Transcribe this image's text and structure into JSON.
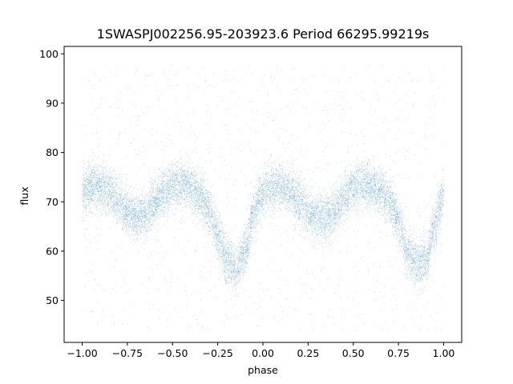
{
  "chart_data": {
    "type": "scatter",
    "title": "1SWASPJ002256.95-203923.6 Period 66295.99219s",
    "xlabel": "phase",
    "ylabel": "flux",
    "xlim": [
      -1.1,
      1.1
    ],
    "ylim": [
      41.5,
      101.5
    ],
    "x_ticks": [
      -1.0,
      -0.75,
      -0.5,
      -0.25,
      0.0,
      0.25,
      0.5,
      0.75,
      1.0
    ],
    "x_tick_labels": [
      "−1.00",
      "−0.75",
      "−0.50",
      "−0.25",
      "0.00",
      "0.25",
      "0.50",
      "0.75",
      "1.00"
    ],
    "y_ticks": [
      50,
      60,
      70,
      80,
      90,
      100
    ],
    "y_tick_labels": [
      "50",
      "60",
      "70",
      "80",
      "90",
      "100"
    ],
    "grid": false,
    "point_color": "#1f77b4",
    "description_note": "",
    "light_curve": {
      "phase": [
        -1.0,
        -0.95,
        -0.9,
        -0.85,
        -0.8,
        -0.75,
        -0.7,
        -0.65,
        -0.6,
        -0.55,
        -0.5,
        -0.45,
        -0.4,
        -0.35,
        -0.3,
        -0.25,
        -0.2,
        -0.15,
        -0.1,
        -0.05,
        0.0,
        0.05,
        0.1,
        0.15,
        0.2,
        0.25,
        0.3,
        0.35,
        0.4,
        0.45,
        0.5,
        0.55,
        0.6,
        0.65,
        0.7,
        0.75,
        0.8,
        0.85,
        0.9,
        0.95,
        1.0
      ],
      "flux": [
        72,
        73,
        73,
        72,
        70,
        68,
        67,
        67.5,
        70,
        72,
        73,
        73.5,
        73,
        71,
        68,
        63,
        58,
        56,
        60,
        68,
        72,
        73,
        73,
        72,
        70,
        68,
        67,
        67,
        68,
        71,
        73,
        73.5,
        73,
        72,
        70,
        66,
        60,
        57,
        58,
        65,
        72
      ],
      "scatter": 2.3,
      "n_points": 45000,
      "n_outliers": 1200,
      "outlier_range": [
        44,
        98
      ]
    }
  }
}
